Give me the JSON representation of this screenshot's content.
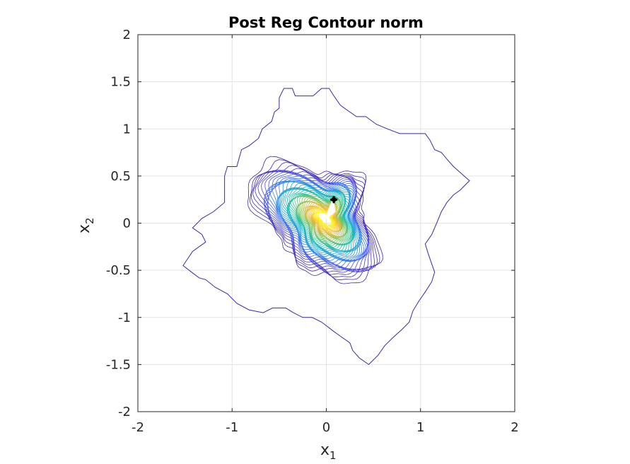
{
  "chart_data": {
    "type": "contour",
    "title": "Post Reg Contour norm",
    "xlabel": "x",
    "xlabel_sub": "1",
    "ylabel": "x",
    "ylabel_sub": "2",
    "xlim": [
      -2,
      2
    ],
    "ylim": [
      -2,
      2
    ],
    "xticks": [
      -2,
      -1,
      0,
      1,
      2
    ],
    "yticks": [
      -2,
      -1.5,
      -1,
      -0.5,
      0,
      0.5,
      1,
      1.5,
      2
    ],
    "xtick_labels": [
      "-2",
      "-1",
      "0",
      "1",
      "2"
    ],
    "ytick_labels": [
      "-2",
      "-1.5",
      "-1",
      "-0.5",
      "0",
      "0.5",
      "1",
      "1.5",
      "2"
    ],
    "grid": true,
    "colormap": [
      "#3e26a8",
      "#4a3cd9",
      "#4464f5",
      "#2d8be8",
      "#1fa8d5",
      "#19bcb0",
      "#3dc486",
      "#7cc45c",
      "#bcbd3b",
      "#f1b52e",
      "#fadf1f",
      "#f9fb15"
    ],
    "outer_contour": [
      [
        -0.45,
        1.43
      ],
      [
        -0.36,
        1.43
      ],
      [
        -0.33,
        1.35
      ],
      [
        -0.14,
        1.35
      ],
      [
        -0.05,
        1.43
      ],
      [
        0.03,
        1.43
      ],
      [
        0.08,
        1.35
      ],
      [
        0.15,
        1.25
      ],
      [
        0.32,
        1.13
      ],
      [
        0.42,
        1.13
      ],
      [
        0.53,
        1.05
      ],
      [
        0.65,
        1.0
      ],
      [
        0.78,
        0.95
      ],
      [
        1.05,
        0.95
      ],
      [
        1.1,
        0.88
      ],
      [
        1.15,
        0.78
      ],
      [
        1.22,
        0.75
      ],
      [
        1.28,
        0.68
      ],
      [
        1.35,
        0.6
      ],
      [
        1.52,
        0.45
      ],
      [
        1.42,
        0.35
      ],
      [
        1.35,
        0.3
      ],
      [
        1.28,
        0.22
      ],
      [
        1.22,
        0.12
      ],
      [
        1.18,
        0.02
      ],
      [
        1.12,
        -0.12
      ],
      [
        1.05,
        -0.22
      ],
      [
        1.08,
        -0.32
      ],
      [
        1.15,
        -0.52
      ],
      [
        1.12,
        -0.62
      ],
      [
        1.05,
        -0.73
      ],
      [
        0.98,
        -0.83
      ],
      [
        0.92,
        -0.93
      ],
      [
        0.88,
        -1.05
      ],
      [
        0.8,
        -1.13
      ],
      [
        0.7,
        -1.22
      ],
      [
        0.62,
        -1.3
      ],
      [
        0.55,
        -1.4
      ],
      [
        0.45,
        -1.5
      ],
      [
        0.35,
        -1.43
      ],
      [
        0.28,
        -1.35
      ],
      [
        0.25,
        -1.27
      ],
      [
        0.15,
        -1.2
      ],
      [
        0.08,
        -1.15
      ],
      [
        -0.05,
        -1.05
      ],
      [
        -0.15,
        -1.0
      ],
      [
        -0.25,
        -1.0
      ],
      [
        -0.35,
        -0.95
      ],
      [
        -0.43,
        -0.9
      ],
      [
        -0.57,
        -0.9
      ],
      [
        -0.67,
        -0.95
      ],
      [
        -0.82,
        -0.92
      ],
      [
        -0.95,
        -0.85
      ],
      [
        -1.05,
        -0.75
      ],
      [
        -1.18,
        -0.68
      ],
      [
        -1.28,
        -0.6
      ],
      [
        -1.35,
        -0.58
      ],
      [
        -1.43,
        -0.52
      ],
      [
        -1.52,
        -0.45
      ],
      [
        -1.42,
        -0.3
      ],
      [
        -1.28,
        -0.2
      ],
      [
        -1.32,
        -0.12
      ],
      [
        -1.42,
        -0.05
      ],
      [
        -1.32,
        0.05
      ],
      [
        -1.2,
        0.12
      ],
      [
        -1.08,
        0.22
      ],
      [
        -1.08,
        0.5
      ],
      [
        -1.05,
        0.6
      ],
      [
        -0.95,
        0.6
      ],
      [
        -0.9,
        0.78
      ],
      [
        -0.82,
        0.82
      ],
      [
        -0.72,
        0.9
      ],
      [
        -0.68,
        1.0
      ],
      [
        -0.58,
        1.08
      ],
      [
        -0.55,
        1.18
      ],
      [
        -0.5,
        1.22
      ],
      [
        -0.5,
        1.33
      ]
    ],
    "peak": [
      0.0,
      0.05
    ],
    "marker": [
      0.08,
      0.25
    ]
  }
}
